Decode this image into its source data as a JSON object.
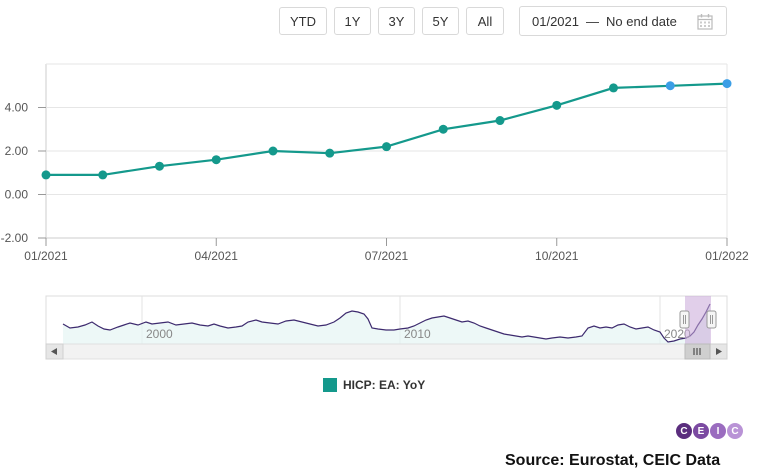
{
  "range_buttons": [
    "YTD",
    "1Y",
    "3Y",
    "5Y",
    "All"
  ],
  "date_range": {
    "start": "01/2021",
    "separator": "—",
    "end": "No end date"
  },
  "legend": {
    "label": "HICP: EA: YoY",
    "color": "#14998c"
  },
  "source": "Source: Eurostat, CEIC Data",
  "logo_letters": [
    "C",
    "E",
    "I",
    "C"
  ],
  "chart_data": {
    "type": "line",
    "x": [
      "2021-01",
      "2021-02",
      "2021-03",
      "2021-04",
      "2021-05",
      "2021-06",
      "2021-07",
      "2021-08",
      "2021-09",
      "2021-10",
      "2021-11",
      "2021-12",
      "2022-01"
    ],
    "series": [
      {
        "name": "HICP: EA: YoY",
        "values": [
          0.9,
          0.9,
          1.3,
          1.6,
          2.0,
          1.9,
          2.2,
          3.0,
          3.4,
          4.1,
          4.9,
          5.0,
          5.1
        ],
        "color": "#14998c"
      }
    ],
    "x_tick_labels": [
      "01/2021",
      "04/2021",
      "07/2021",
      "10/2021",
      "01/2022"
    ],
    "y_tick_labels": [
      "-2.00",
      "0.00",
      "2.00",
      "4.00"
    ],
    "ylim": [
      -2,
      6
    ],
    "navigator": {
      "labels": [
        "2000",
        "2010",
        "2020"
      ],
      "series_color": "#3d2a6e"
    }
  }
}
